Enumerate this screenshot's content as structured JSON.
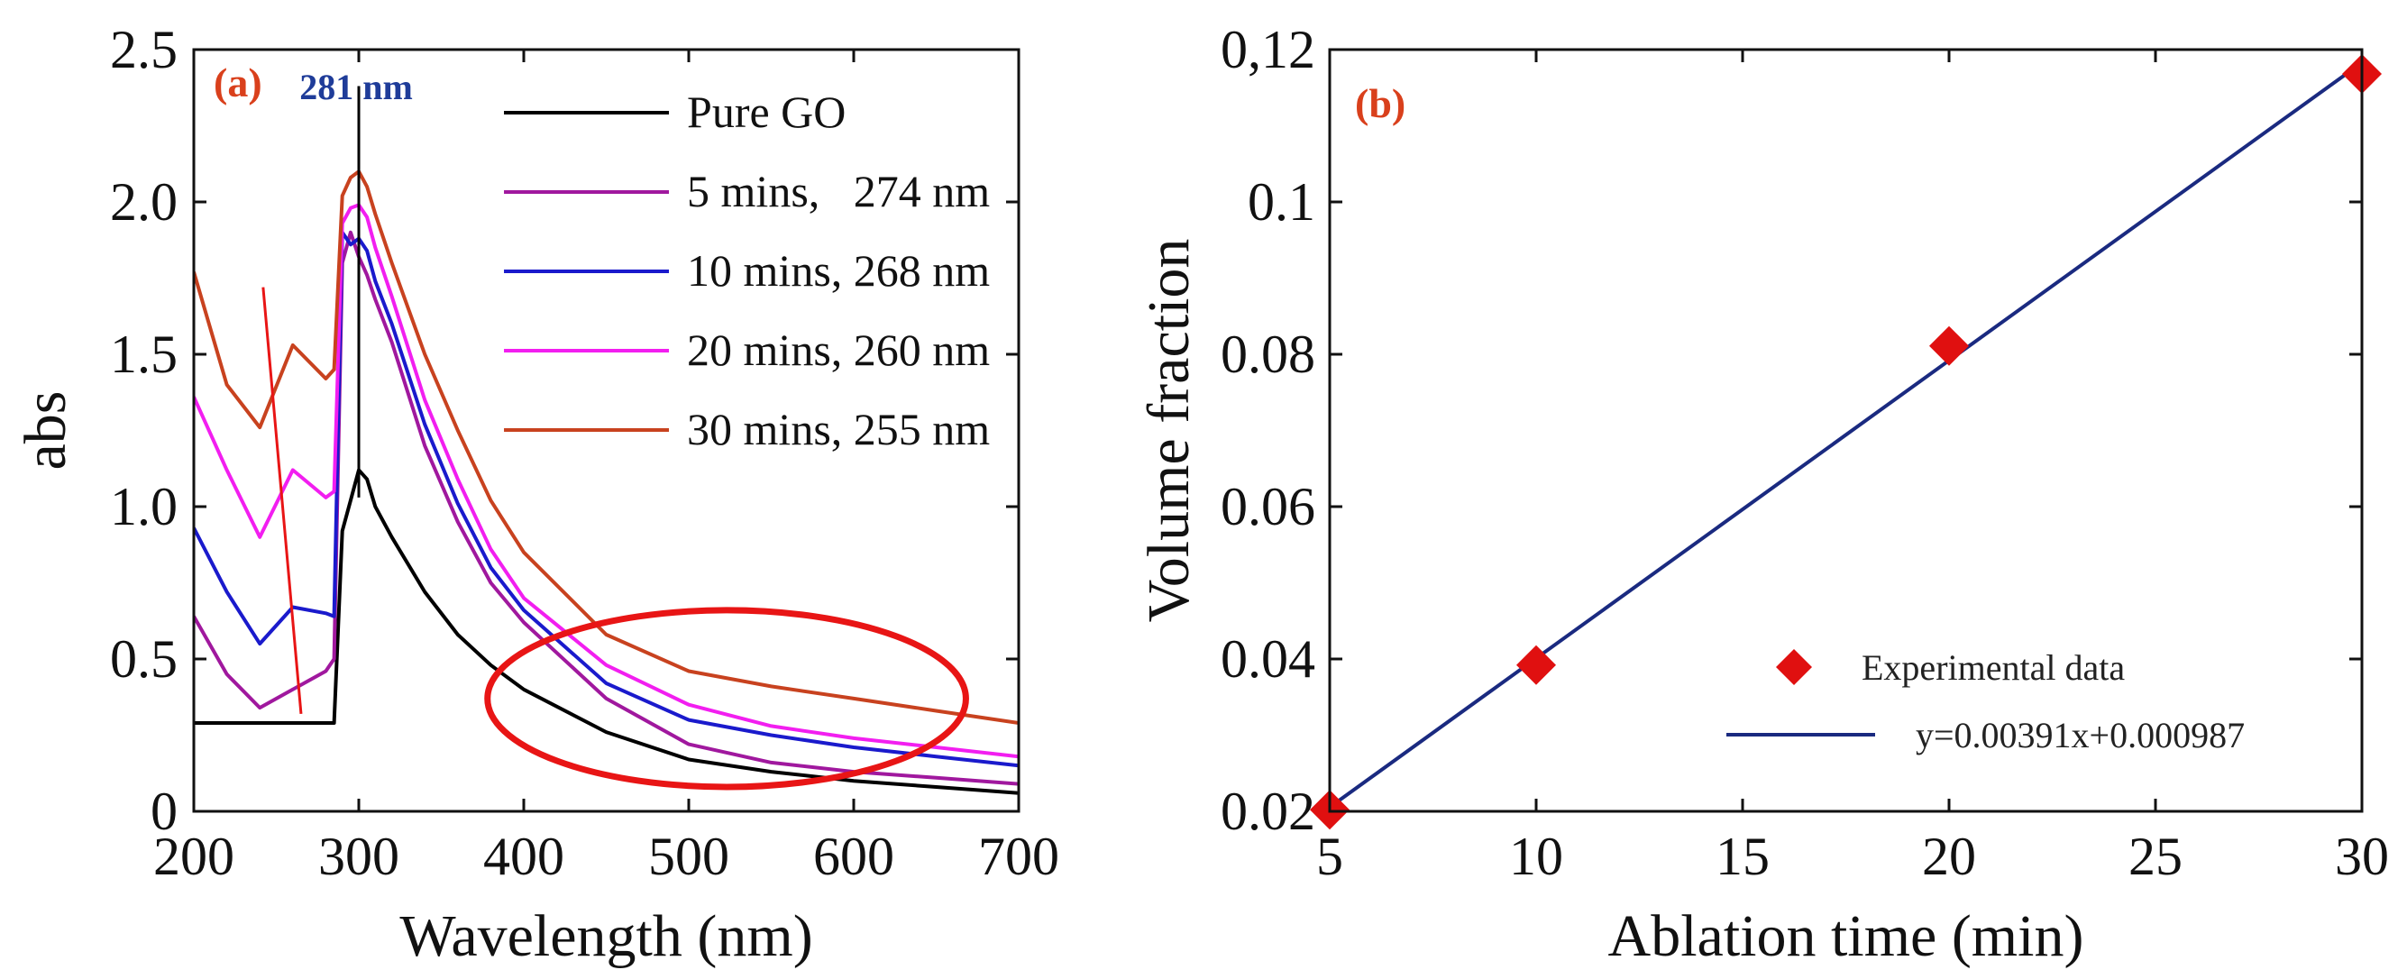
{
  "chart_data": [
    {
      "type": "line",
      "panel_label": "(a)",
      "xlabel": "Wavelength (nm)",
      "ylabel": "abs",
      "xlim": [
        200,
        700
      ],
      "ylim": [
        0,
        2.5
      ],
      "xticks": [
        200,
        300,
        400,
        500,
        600,
        700
      ],
      "yticks": [
        0,
        0.5,
        1.0,
        1.5,
        2.0,
        2.5
      ],
      "ytick_labels": [
        "0",
        "0.5",
        "1.0",
        "1.5",
        "2.0",
        "2.5"
      ],
      "annotation": "281 nm",
      "annotation_color": "#1f3c99",
      "panel_label_color": "#d9401c",
      "x": [
        200,
        220,
        240,
        260,
        280,
        285,
        290,
        295,
        300,
        305,
        310,
        320,
        340,
        360,
        380,
        400,
        450,
        500,
        550,
        600,
        650,
        700
      ],
      "series": [
        {
          "name": "Pure GO",
          "color": "#000000",
          "values": [
            0.29,
            0.29,
            0.29,
            0.29,
            0.29,
            0.29,
            0.92,
            1.02,
            1.12,
            1.09,
            1.0,
            0.9,
            0.72,
            0.58,
            0.48,
            0.4,
            0.26,
            0.17,
            0.13,
            0.1,
            0.08,
            0.06
          ]
        },
        {
          "name": "5 mins,   274 nm",
          "color": "#a0189e",
          "values": [
            0.64,
            0.45,
            0.34,
            0.4,
            0.46,
            0.5,
            1.8,
            1.9,
            1.82,
            1.76,
            1.68,
            1.54,
            1.2,
            0.95,
            0.75,
            0.62,
            0.37,
            0.22,
            0.16,
            0.13,
            0.11,
            0.09
          ]
        },
        {
          "name": "10 mins, 268 nm",
          "color": "#1a1acc",
          "values": [
            0.93,
            0.72,
            0.55,
            0.67,
            0.65,
            0.64,
            1.9,
            1.86,
            1.88,
            1.84,
            1.74,
            1.6,
            1.27,
            1.01,
            0.8,
            0.66,
            0.42,
            0.3,
            0.25,
            0.21,
            0.18,
            0.15
          ]
        },
        {
          "name": "20 mins, 260 nm",
          "color": "#f21ef0",
          "values": [
            1.36,
            1.12,
            0.9,
            1.12,
            1.03,
            1.05,
            1.93,
            1.98,
            1.99,
            1.95,
            1.85,
            1.69,
            1.35,
            1.09,
            0.86,
            0.7,
            0.48,
            0.35,
            0.28,
            0.24,
            0.21,
            0.18
          ]
        },
        {
          "name": "30 mins, 255 nm",
          "color": "#c8421f",
          "values": [
            1.77,
            1.4,
            1.26,
            1.53,
            1.42,
            1.45,
            2.02,
            2.08,
            2.1,
            2.05,
            1.96,
            1.8,
            1.5,
            1.25,
            1.02,
            0.85,
            0.58,
            0.46,
            0.41,
            0.37,
            0.33,
            0.29
          ]
        }
      ]
    },
    {
      "type": "scatter",
      "panel_label": "(b)",
      "xlabel": "Ablation time (min)",
      "ylabel": "Volume fraction",
      "xlim": [
        5,
        30
      ],
      "ylim": [
        0.02,
        0.12
      ],
      "xticks": [
        5,
        10,
        15,
        20,
        25,
        30
      ],
      "yticks": [
        0.02,
        0.04,
        0.06,
        0.08,
        0.1,
        0.12
      ],
      "ytick_labels": [
        "0.02",
        "0.04",
        "0.06",
        "0.08",
        "0.1",
        "0,12"
      ],
      "panel_label_color": "#d9401c",
      "series": [
        {
          "name": "Experimental data",
          "marker": "diamond",
          "color": "#e01010",
          "x": [
            5,
            10,
            20,
            30
          ],
          "y": [
            0.0202,
            0.0392,
            0.0811,
            0.1168
          ]
        },
        {
          "name": "y=0.00391x+0.000987",
          "kind": "fit",
          "color": "#1a2a80",
          "slope": 0.00391,
          "intercept": 0.000987
        }
      ]
    }
  ]
}
